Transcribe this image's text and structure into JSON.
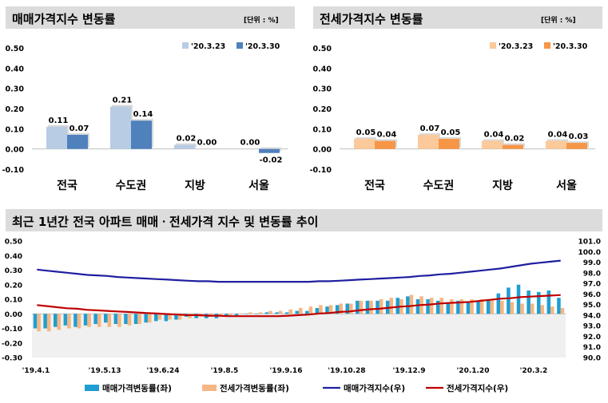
{
  "chart_data": [
    {
      "type": "bar",
      "title": "매매가격지수 변동률",
      "unit": "[단위 : %]",
      "categories": [
        "전국",
        "수도권",
        "지방",
        "서울"
      ],
      "series": [
        {
          "name": "'20.3.23",
          "values": [
            0.11,
            0.21,
            0.02,
            0.0
          ],
          "color": "#b8cce4"
        },
        {
          "name": "'20.3.30",
          "values": [
            0.07,
            0.14,
            0.0,
            -0.02
          ],
          "color": "#4f81bd"
        }
      ],
      "value_labels": [
        [
          "0.11",
          "0.21",
          "0.02",
          "0.00"
        ],
        [
          "0.07",
          "0.14",
          "0.00",
          "-0.02"
        ]
      ],
      "ylim": [
        -0.1,
        0.5
      ],
      "yticks": [
        "0.50",
        "0.40",
        "0.30",
        "0.20",
        "0.10",
        "0.00",
        "-0.10"
      ],
      "legend": "top-right",
      "grid": false
    },
    {
      "type": "bar",
      "title": "전세가격지수 변동률",
      "unit": "[단위 : %]",
      "categories": [
        "전국",
        "수도권",
        "지방",
        "서울"
      ],
      "series": [
        {
          "name": "'20.3.23",
          "values": [
            0.05,
            0.07,
            0.04,
            0.04
          ],
          "color": "#fcc99a"
        },
        {
          "name": "'20.3.30",
          "values": [
            0.04,
            0.05,
            0.02,
            0.03
          ],
          "color": "#f79646"
        }
      ],
      "value_labels": [
        [
          "0.05",
          "0.07",
          "0.04",
          "0.04"
        ],
        [
          "0.04",
          "0.05",
          "0.02",
          "0.03"
        ]
      ],
      "ylim": [
        -0.1,
        0.5
      ],
      "yticks": [
        "0.50",
        "0.40",
        "0.30",
        "0.20",
        "0.10",
        "0.00",
        "-0.10"
      ],
      "legend": "top-right",
      "grid": false
    },
    {
      "type": "bar",
      "title": "최근 1년간 전국 아파트 매매ㆍ전세가격 지수 및 변동률 추이",
      "x_tick_labels": [
        "'19.4.1",
        "'19.5.13",
        "'19.6.24",
        "'19.8.5",
        "'19.9.16",
        "'19.10.28",
        "'19.12.9",
        "'20.1.20",
        "'20.3.2"
      ],
      "y_left": {
        "ylim": [
          -0.3,
          0.5
        ],
        "ticks": [
          "0.50",
          "0.40",
          "0.30",
          "0.20",
          "0.10",
          "0.00",
          "-0.10",
          "-0.20",
          "-0.30"
        ]
      },
      "y_right": {
        "ylim": [
          90.0,
          101.0
        ],
        "ticks": [
          "101.0",
          "100.0",
          "99.0",
          "98.0",
          "97.0",
          "96.0",
          "95.0",
          "94.0",
          "93.0",
          "92.0",
          "91.0",
          "90.0"
        ]
      },
      "series": [
        {
          "name": "매매가격변동률(좌)",
          "kind": "bar",
          "axis": "left",
          "color": "#1f9ed1",
          "values": [
            -0.1,
            -0.1,
            -0.09,
            -0.08,
            -0.09,
            -0.08,
            -0.07,
            -0.06,
            -0.07,
            -0.07,
            -0.07,
            -0.06,
            -0.05,
            -0.05,
            -0.04,
            -0.02,
            -0.03,
            -0.03,
            -0.03,
            -0.02,
            -0.01,
            0.0,
            0.0,
            0.01,
            0.01,
            0.01,
            0.02,
            0.02,
            0.04,
            0.05,
            0.06,
            0.07,
            0.09,
            0.09,
            0.09,
            0.09,
            0.11,
            0.12,
            0.1,
            0.1,
            0.09,
            0.08,
            0.09,
            0.08,
            0.09,
            0.1,
            0.14,
            0.18,
            0.2,
            0.16,
            0.15,
            0.16,
            0.11
          ]
        },
        {
          "name": "전세가격변동률(좌)",
          "kind": "bar",
          "axis": "left",
          "color": "#f6b683",
          "values": [
            -0.12,
            -0.12,
            -0.11,
            -0.1,
            -0.1,
            -0.09,
            -0.09,
            -0.09,
            -0.09,
            -0.08,
            -0.07,
            -0.06,
            -0.04,
            -0.04,
            -0.04,
            -0.03,
            -0.02,
            -0.02,
            -0.01,
            -0.01,
            0.0,
            0.01,
            0.01,
            0.02,
            0.02,
            0.03,
            0.04,
            0.05,
            0.06,
            0.06,
            0.07,
            0.07,
            0.09,
            0.09,
            0.1,
            0.11,
            0.1,
            0.13,
            0.12,
            0.11,
            0.11,
            0.1,
            0.1,
            0.1,
            0.1,
            0.1,
            0.09,
            0.08,
            0.07,
            0.07,
            0.06,
            0.05,
            0.04
          ]
        },
        {
          "name": "매매가격지수(우)",
          "kind": "line",
          "axis": "right",
          "color": "#1f1fa0",
          "values": [
            98.3,
            98.2,
            98.1,
            98.0,
            97.9,
            97.8,
            97.75,
            97.7,
            97.6,
            97.55,
            97.5,
            97.45,
            97.4,
            97.35,
            97.3,
            97.25,
            97.2,
            97.2,
            97.15,
            97.15,
            97.15,
            97.15,
            97.15,
            97.15,
            97.15,
            97.15,
            97.15,
            97.15,
            97.2,
            97.2,
            97.25,
            97.3,
            97.35,
            97.4,
            97.45,
            97.5,
            97.55,
            97.6,
            97.7,
            97.75,
            97.85,
            97.9,
            98.0,
            98.1,
            98.2,
            98.3,
            98.4,
            98.55,
            98.7,
            98.85,
            98.95,
            99.05,
            99.15
          ]
        },
        {
          "name": "전세가격지수(우)",
          "kind": "line",
          "axis": "right",
          "color": "#c00000",
          "values": [
            94.95,
            94.85,
            94.75,
            94.65,
            94.6,
            94.5,
            94.45,
            94.4,
            94.35,
            94.3,
            94.25,
            94.2,
            94.15,
            94.1,
            94.05,
            94.0,
            94.0,
            93.95,
            93.95,
            93.9,
            93.9,
            93.9,
            93.9,
            93.9,
            93.9,
            93.95,
            94.0,
            94.05,
            94.15,
            94.2,
            94.3,
            94.35,
            94.45,
            94.55,
            94.6,
            94.7,
            94.8,
            94.85,
            94.95,
            95.0,
            95.1,
            95.15,
            95.2,
            95.25,
            95.35,
            95.45,
            95.55,
            95.6,
            95.7,
            95.75,
            95.8,
            95.85,
            95.9
          ]
        }
      ],
      "legend": "bottom"
    }
  ]
}
